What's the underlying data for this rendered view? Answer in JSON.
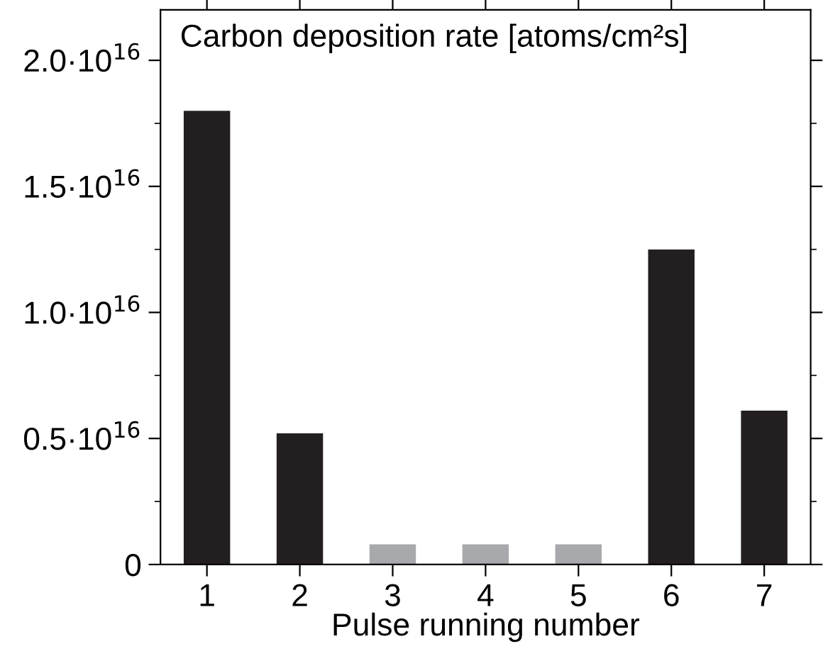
{
  "chart_data": {
    "type": "bar",
    "title": "Carbon deposition rate [atoms/cm²s]",
    "xlabel": "Pulse running number",
    "categories": [
      "1",
      "2",
      "3",
      "4",
      "5",
      "6",
      "7"
    ],
    "values": [
      1.8e+16,
      5200000000000000.0,
      800000000000000.0,
      800000000000000.0,
      800000000000000.0,
      1.25e+16,
      6100000000000000.0
    ],
    "colors": [
      "#231f20",
      "#231f20",
      "#a7a9ac",
      "#a7a9ac",
      "#a7a9ac",
      "#231f20",
      "#231f20"
    ],
    "ylim": [
      0,
      2.2e+16
    ],
    "yticks": [
      {
        "value": 0,
        "label": "0"
      },
      {
        "value": 5000000000000000.0,
        "label": "0.5·10$^{16}$"
      },
      {
        "value": 1e+16,
        "label": "1.0·10$^{16}$"
      },
      {
        "value": 1.5e+16,
        "label": "1.5·10$^{16}$"
      },
      {
        "value": 2e+16,
        "label": "2.0·10$^{16}$"
      }
    ],
    "grid": false,
    "legend": false
  }
}
